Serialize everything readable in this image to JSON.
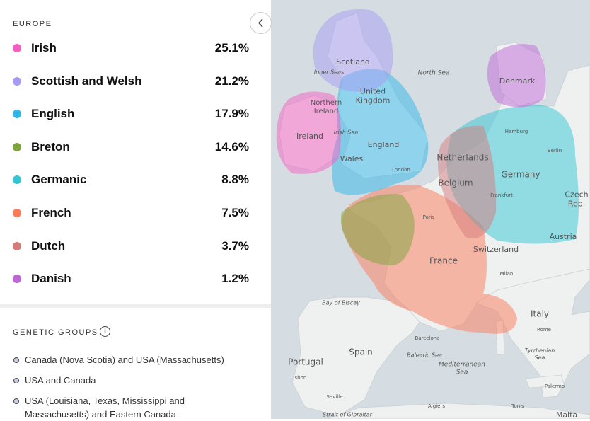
{
  "panel": {
    "region": "EUROPE",
    "ancestry": [
      {
        "name": "Irish",
        "percent": "25.1%",
        "color": "#f45fbf"
      },
      {
        "name": "Scottish and Welsh",
        "percent": "21.2%",
        "color": "#a59bf2"
      },
      {
        "name": "English",
        "percent": "17.9%",
        "color": "#2fb6e8"
      },
      {
        "name": "Breton",
        "percent": "14.6%",
        "color": "#7ea33b"
      },
      {
        "name": "Germanic",
        "percent": "8.8%",
        "color": "#33c6d3"
      },
      {
        "name": "French",
        "percent": "7.5%",
        "color": "#fb7a58"
      },
      {
        "name": "Dutch",
        "percent": "3.7%",
        "color": "#d57c7b"
      },
      {
        "name": "Danish",
        "percent": "1.2%",
        "color": "#c065d6"
      }
    ],
    "genetic_groups_title": "GENETIC GROUPS",
    "genetic_groups": [
      "Canada (Nova Scotia) and USA (Massachusetts)",
      "USA and Canada",
      "USA (Louisiana, Texas, Mississippi and Massachusetts) and Eastern Canada"
    ]
  },
  "map": {
    "labels": [
      "Scotland",
      "Inner Seas",
      "North Sea",
      "United Kingdom",
      "Northern Ireland",
      "Ireland",
      "Irish Sea",
      "England",
      "Wales",
      "London",
      "Denmark",
      "Hamburg",
      "Berlin",
      "Netherlands",
      "Germany",
      "Belgium",
      "Frankfurt",
      "Czech Rep.",
      "Paris",
      "Austria",
      "Switzerland",
      "France",
      "Milan",
      "Bay of Biscay",
      "Italy",
      "Rome",
      "Tyrrhenian Sea",
      "Barcelona",
      "Balearic Sea",
      "Spain",
      "Portugal",
      "Mediterranean Sea",
      "Lisbon",
      "Seville",
      "Algiers",
      "Tunis",
      "Palermo",
      "Strait of Gibraltar",
      "Malta"
    ]
  }
}
